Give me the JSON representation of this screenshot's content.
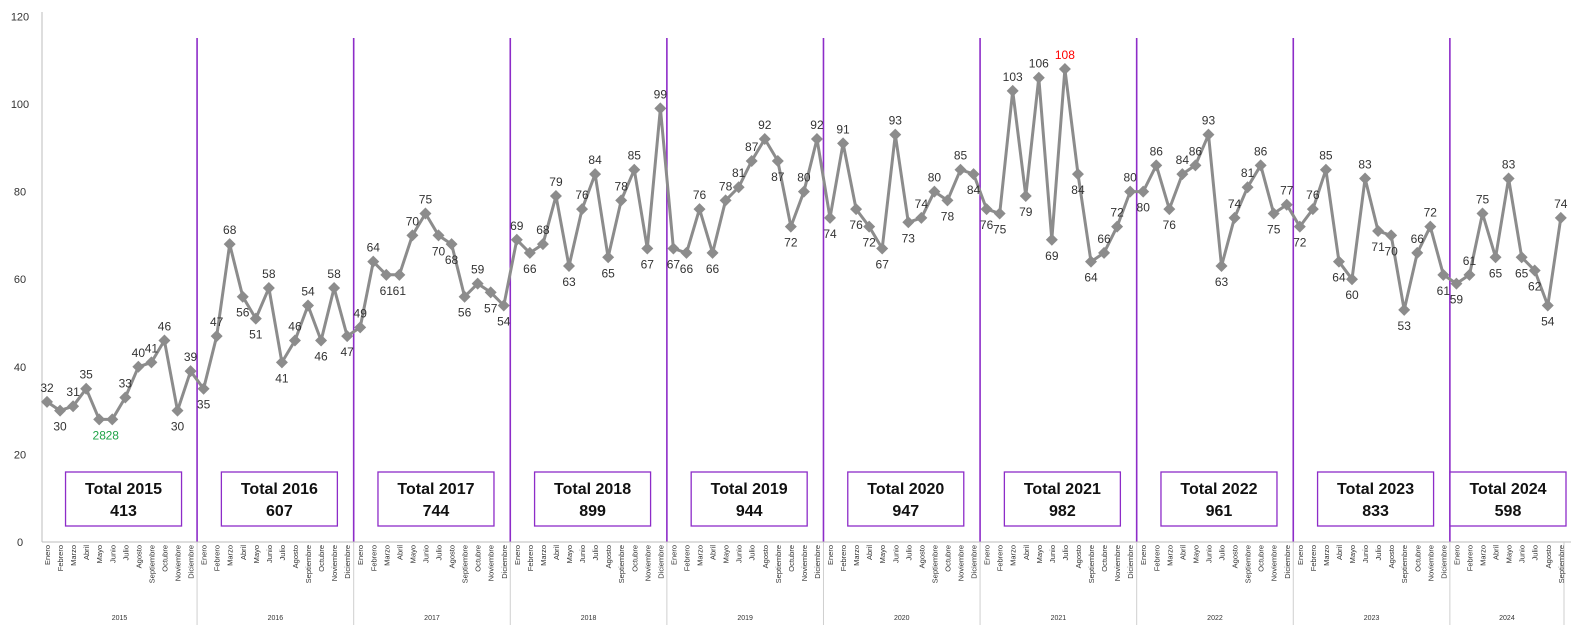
{
  "chart_data": {
    "type": "line",
    "title": "",
    "xlabel": "",
    "ylabel": "",
    "ylim": [
      0,
      120
    ],
    "yticks": [
      0,
      20,
      40,
      60,
      80,
      100,
      120
    ],
    "grid": false,
    "legend": "none",
    "months": [
      "Enero",
      "Febrero",
      "Marzo",
      "Abril",
      "Mayo",
      "Junio",
      "Julio",
      "Agosto",
      "Septiembre",
      "Octubre",
      "Noviembre",
      "Diciembre"
    ],
    "colors": {
      "line": "#8c8c8c",
      "marker": "#8c8c8c",
      "separator": "#8d2cc8",
      "box_border": "#8d2cc8",
      "min_label": "#1fa347",
      "max_label": "#ff0000"
    },
    "years": [
      {
        "year": "2015",
        "total_label": "Total 2015",
        "total": "413",
        "values": [
          32,
          30,
          31,
          35,
          28,
          28,
          33,
          40,
          41,
          46,
          30,
          39
        ]
      },
      {
        "year": "2016",
        "total_label": "Total 2016",
        "total": "607",
        "values": [
          35,
          47,
          68,
          56,
          51,
          58,
          41,
          46,
          54,
          46,
          58,
          47
        ]
      },
      {
        "year": "2017",
        "total_label": "Total 2017",
        "total": "744",
        "values": [
          49,
          64,
          61,
          61,
          70,
          75,
          70,
          68,
          56,
          59,
          57,
          54
        ]
      },
      {
        "year": "2018",
        "total_label": "Total 2018",
        "total": "899",
        "values": [
          69,
          66,
          68,
          79,
          63,
          76,
          84,
          65,
          78,
          85,
          67,
          99
        ]
      },
      {
        "year": "2019",
        "total_label": "Total 2019",
        "total": "944",
        "values": [
          67,
          66,
          76,
          66,
          78,
          81,
          87,
          92,
          87,
          72,
          80,
          92
        ]
      },
      {
        "year": "2020",
        "total_label": "Total 2020",
        "total": "947",
        "values": [
          74,
          91,
          76,
          72,
          67,
          93,
          73,
          74,
          80,
          78,
          85,
          84
        ]
      },
      {
        "year": "2021",
        "total_label": "Total 2021",
        "total": "982",
        "values": [
          76,
          75,
          103,
          79,
          106,
          69,
          108,
          84,
          64,
          66,
          72,
          80
        ]
      },
      {
        "year": "2022",
        "total_label": "Total 2022",
        "total": "961",
        "values": [
          80,
          86,
          76,
          84,
          86,
          93,
          63,
          74,
          81,
          86,
          75,
          77
        ]
      },
      {
        "year": "2023",
        "total_label": "Total 2023",
        "total": "833",
        "values": [
          72,
          76,
          85,
          64,
          60,
          83,
          71,
          70,
          53,
          66,
          72,
          61
        ]
      },
      {
        "year": "2024",
        "total_label": "Total 2024",
        "total": "598",
        "values": [
          59,
          61,
          75,
          65,
          83,
          65,
          62,
          54,
          74
        ]
      }
    ],
    "min_points": [
      [
        0,
        4
      ],
      [
        0,
        5
      ]
    ],
    "max_points": [
      [
        6,
        6
      ]
    ]
  }
}
